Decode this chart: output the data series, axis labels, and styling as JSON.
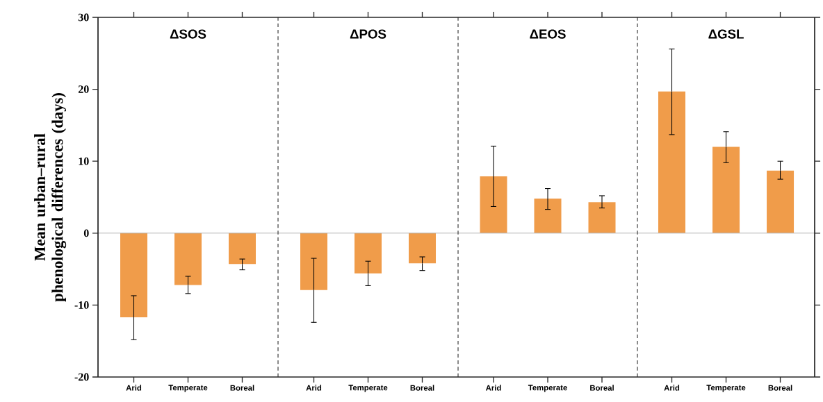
{
  "chart_data": [
    {
      "type": "bar",
      "title": "ΔSOS",
      "ylabel": "Mean urban–rural phenological differences (days)",
      "categories": [
        "Arid",
        "Temperate",
        "Boreal"
      ],
      "values": [
        -11.7,
        -7.2,
        -4.3
      ],
      "errors": [
        [
          -14.8,
          -8.7
        ],
        [
          -8.4,
          -6.0
        ],
        [
          -5.1,
          -3.6
        ]
      ],
      "color": "#f09c4a",
      "ylim": [
        -20,
        30
      ],
      "yticks": [
        -20,
        -10,
        0,
        10,
        20,
        30
      ],
      "ref_lines": [
        {
          "axis": "y",
          "value": 0,
          "color": "#b0b0b0"
        }
      ]
    },
    {
      "type": "bar",
      "title": "ΔPOS",
      "categories": [
        "Arid",
        "Temperate",
        "Boreal"
      ],
      "values": [
        -7.9,
        -5.6,
        -4.2
      ],
      "errors": [
        [
          -12.4,
          -3.5
        ],
        [
          -7.3,
          -3.9
        ],
        [
          -5.2,
          -3.3
        ]
      ],
      "color": "#f09c4a",
      "ylim": [
        -20,
        30
      ],
      "tick_labels": "x",
      "ref_lines": [
        {
          "axis": "y",
          "value": 0,
          "color": "#b0b0b0"
        }
      ]
    },
    {
      "type": "bar",
      "title": "ΔEOS",
      "categories": [
        "Arid",
        "Temperate",
        "Boreal"
      ],
      "values": [
        7.9,
        4.8,
        4.3
      ],
      "errors": [
        [
          3.7,
          12.1
        ],
        [
          3.3,
          6.2
        ],
        [
          3.5,
          5.2
        ]
      ],
      "color": "#f09c4a",
      "ylim": [
        -20,
        30
      ],
      "tick_labels": "x",
      "ref_lines": [
        {
          "axis": "y",
          "value": 0,
          "color": "#b0b0b0"
        }
      ]
    },
    {
      "type": "bar",
      "title": "ΔGSL",
      "categories": [
        "Arid",
        "Temperate",
        "Boreal"
      ],
      "values": [
        19.7,
        12.0,
        8.7
      ],
      "errors": [
        [
          13.7,
          25.6
        ],
        [
          9.8,
          14.1
        ],
        [
          7.5,
          10.0
        ]
      ],
      "color": "#f09c4a",
      "ylim": [
        -20,
        30
      ],
      "yticks": [
        {
          "value": -20,
          "label": null
        },
        {
          "value": -10,
          "label": null
        },
        {
          "value": 0,
          "label": null
        },
        {
          "value": 10,
          "label": null
        },
        {
          "value": 20,
          "label": null
        },
        {
          "value": 30,
          "label": null
        }
      ],
      "tick_labels": "x",
      "ref_lines": [
        {
          "axis": "y",
          "value": 0,
          "color": "#b0b0b0"
        }
      ]
    }
  ]
}
